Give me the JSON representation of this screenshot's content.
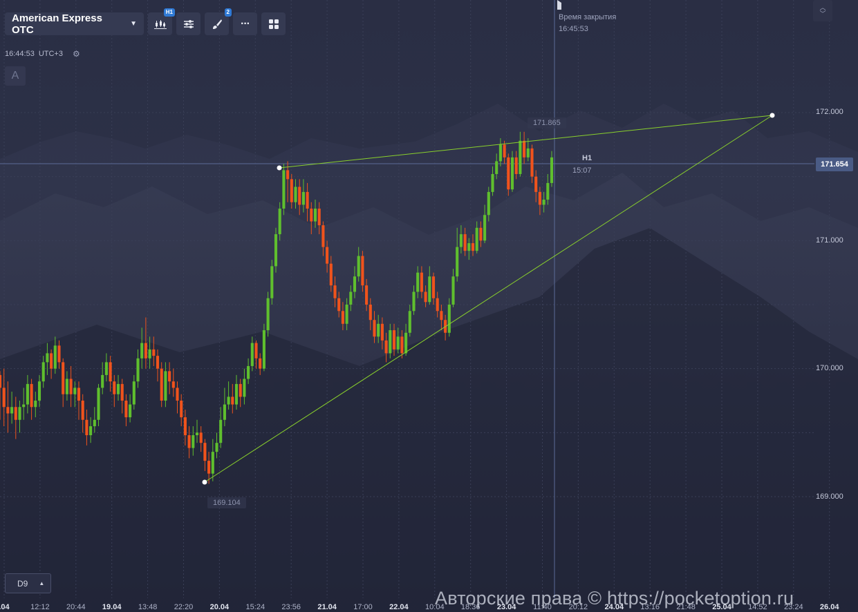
{
  "toolbar": {
    "asset": "American Express OTC",
    "timeframe_badge": "H1",
    "drawings_badge": "2"
  },
  "clock": {
    "time": "16:44:53",
    "zone": "UTC+3"
  },
  "letter_button": "A",
  "close_info": {
    "label": "Время закрытия",
    "time": "16:45:53"
  },
  "current_price": "171.654",
  "candle_timer": {
    "period": "H1",
    "remaining": "15:07"
  },
  "price_axis": [
    "172.000",
    "171.000",
    "170.000",
    "169.000"
  ],
  "time_axis": [
    {
      "label": ".04",
      "bold": true
    },
    {
      "label": "12:12",
      "bold": false
    },
    {
      "label": "20:44",
      "bold": false
    },
    {
      "label": "19.04",
      "bold": true
    },
    {
      "label": "13:48",
      "bold": false
    },
    {
      "label": "22:20",
      "bold": false
    },
    {
      "label": "20.04",
      "bold": true
    },
    {
      "label": "15:24",
      "bold": false
    },
    {
      "label": "23:56",
      "bold": false
    },
    {
      "label": "21.04",
      "bold": true
    },
    {
      "label": "17:00",
      "bold": false
    },
    {
      "label": "22.04",
      "bold": true
    },
    {
      "label": "10:04",
      "bold": false
    },
    {
      "label": "18:36",
      "bold": false
    },
    {
      "label": "23.04",
      "bold": true
    },
    {
      "label": "11:40",
      "bold": false
    },
    {
      "label": "20:12",
      "bold": false
    },
    {
      "label": "24.04",
      "bold": true
    },
    {
      "label": "13:16",
      "bold": false
    },
    {
      "label": "21:48",
      "bold": false
    },
    {
      "label": "25.04",
      "bold": true
    },
    {
      "label": "14:52",
      "bold": false
    },
    {
      "label": "23:24",
      "bold": false
    },
    {
      "label": "26.04",
      "bold": true
    },
    {
      "label": "16:",
      "bold": false
    }
  ],
  "drawing_labels": {
    "high": "171.865",
    "low": "169.104"
  },
  "period_selector": "D9",
  "watermark": "Авторские права © https://pocketoption.ru",
  "colors": {
    "bull": "#5fbf2e",
    "bear": "#f0531c",
    "trendline": "#8ad12c",
    "background": "#2a2e44"
  },
  "chart_data": {
    "type": "candlestick",
    "ylim": [
      168.6,
      172.4
    ],
    "trendlines": [
      {
        "from": {
          "time": "20.04 ~22:00",
          "price": 169.104
        },
        "to": {
          "time": "25.04 ~23:00",
          "price": 172.0
        }
      },
      {
        "from": {
          "time": "21.04 ~00:00",
          "price": 171.6
        },
        "to": {
          "time": "25.04 ~23:00",
          "price": 172.0
        }
      }
    ],
    "candles": [
      [
        169.95,
        169.85,
        169.98,
        169.6
      ],
      [
        169.85,
        169.7,
        170.0,
        169.55
      ],
      [
        169.7,
        169.65,
        169.9,
        169.5
      ],
      [
        169.65,
        169.7,
        169.82,
        169.57
      ],
      [
        169.7,
        169.6,
        169.78,
        169.45
      ],
      [
        169.6,
        169.7,
        169.75,
        169.5
      ],
      [
        169.7,
        169.72,
        169.85,
        169.6
      ],
      [
        169.72,
        169.88,
        169.95,
        169.65
      ],
      [
        169.88,
        169.7,
        169.92,
        169.6
      ],
      [
        169.7,
        169.75,
        169.82,
        169.62
      ],
      [
        169.75,
        169.9,
        169.95,
        169.7
      ],
      [
        169.9,
        170.05,
        170.1,
        169.85
      ],
      [
        170.05,
        170.12,
        170.2,
        169.95
      ],
      [
        170.12,
        170.0,
        170.15,
        169.92
      ],
      [
        170.0,
        170.18,
        170.25,
        169.96
      ],
      [
        170.18,
        170.05,
        170.22,
        170.0
      ],
      [
        170.05,
        169.8,
        170.08,
        169.7
      ],
      [
        169.8,
        169.92,
        169.98,
        169.75
      ],
      [
        169.92,
        169.8,
        170.02,
        169.7
      ],
      [
        169.8,
        169.85,
        169.9,
        169.7
      ],
      [
        169.85,
        169.75,
        169.9,
        169.6
      ],
      [
        169.75,
        169.6,
        169.8,
        169.5
      ],
      [
        169.6,
        169.48,
        169.68,
        169.4
      ],
      [
        169.48,
        169.55,
        169.62,
        169.42
      ],
      [
        169.55,
        169.6,
        169.7,
        169.5
      ],
      [
        169.6,
        169.85,
        169.88,
        169.55
      ],
      [
        169.85,
        169.95,
        170.05,
        169.8
      ],
      [
        169.95,
        170.05,
        170.12,
        169.9
      ],
      [
        170.05,
        169.9,
        170.1,
        169.82
      ],
      [
        169.9,
        169.8,
        169.95,
        169.7
      ],
      [
        169.8,
        169.88,
        169.95,
        169.75
      ],
      [
        169.88,
        169.75,
        169.92,
        169.65
      ],
      [
        169.75,
        169.62,
        169.8,
        169.55
      ],
      [
        169.62,
        169.72,
        169.8,
        169.58
      ],
      [
        169.72,
        169.9,
        169.95,
        169.68
      ],
      [
        169.9,
        170.08,
        170.15,
        169.85
      ],
      [
        170.08,
        170.2,
        170.32,
        170.0
      ],
      [
        170.2,
        170.08,
        170.4,
        170.0
      ],
      [
        170.08,
        170.15,
        170.25,
        170.0
      ],
      [
        170.15,
        170.1,
        170.25,
        170.02
      ],
      [
        170.1,
        170.0,
        170.15,
        169.9
      ],
      [
        170.0,
        169.75,
        170.05,
        169.7
      ],
      [
        169.75,
        169.98,
        170.05,
        169.7
      ],
      [
        169.98,
        169.9,
        170.05,
        169.8
      ],
      [
        169.9,
        169.85,
        170.0,
        169.78
      ],
      [
        169.85,
        169.75,
        169.9,
        169.65
      ],
      [
        169.75,
        169.62,
        169.8,
        169.55
      ],
      [
        169.62,
        169.48,
        169.68,
        169.4
      ],
      [
        169.48,
        169.38,
        169.55,
        169.3
      ],
      [
        169.38,
        169.48,
        169.55,
        169.32
      ],
      [
        169.48,
        169.5,
        169.6,
        169.42
      ],
      [
        169.5,
        169.42,
        169.55,
        169.35
      ],
      [
        169.42,
        169.28,
        169.45,
        169.2
      ],
      [
        169.28,
        169.18,
        169.35,
        169.1
      ],
      [
        169.18,
        169.35,
        169.45,
        169.12
      ],
      [
        169.35,
        169.42,
        169.5,
        169.3
      ],
      [
        169.42,
        169.6,
        169.7,
        169.38
      ],
      [
        169.6,
        169.72,
        169.85,
        169.55
      ],
      [
        169.72,
        169.78,
        169.9,
        169.68
      ],
      [
        169.78,
        169.72,
        169.88,
        169.65
      ],
      [
        169.72,
        169.88,
        169.95,
        169.68
      ],
      [
        169.88,
        169.78,
        169.92,
        169.7
      ],
      [
        169.78,
        169.92,
        170.0,
        169.72
      ],
      [
        169.92,
        170.02,
        170.08,
        169.88
      ],
      [
        170.02,
        170.2,
        170.25,
        169.98
      ],
      [
        170.2,
        170.08,
        170.22,
        170.0
      ],
      [
        170.08,
        170.0,
        170.12,
        169.95
      ],
      [
        170.0,
        170.3,
        170.35,
        169.98
      ],
      [
        170.3,
        170.55,
        170.6,
        170.25
      ],
      [
        170.55,
        170.8,
        170.85,
        170.5
      ],
      [
        170.8,
        171.05,
        171.1,
        170.75
      ],
      [
        171.05,
        171.25,
        171.3,
        171.0
      ],
      [
        171.25,
        171.55,
        171.6,
        171.2
      ],
      [
        171.55,
        171.48,
        171.62,
        171.3
      ],
      [
        171.48,
        171.3,
        171.52,
        171.25
      ],
      [
        171.3,
        171.42,
        171.48,
        171.25
      ],
      [
        171.42,
        171.28,
        171.48,
        171.2
      ],
      [
        171.28,
        171.38,
        171.48,
        171.22
      ],
      [
        171.38,
        171.25,
        171.45,
        171.15
      ],
      [
        171.25,
        171.15,
        171.3,
        171.05
      ],
      [
        171.15,
        171.25,
        171.32,
        171.1
      ],
      [
        171.25,
        171.12,
        171.3,
        171.05
      ],
      [
        171.12,
        170.95,
        171.15,
        170.88
      ],
      [
        170.95,
        170.82,
        171.0,
        170.75
      ],
      [
        170.82,
        170.65,
        170.88,
        170.6
      ],
      [
        170.65,
        170.55,
        170.72,
        170.48
      ],
      [
        170.55,
        170.45,
        170.6,
        170.4
      ],
      [
        170.45,
        170.35,
        170.52,
        170.3
      ],
      [
        170.35,
        170.5,
        170.55,
        170.3
      ],
      [
        170.5,
        170.6,
        170.65,
        170.45
      ],
      [
        170.6,
        170.72,
        170.8,
        170.55
      ],
      [
        170.72,
        170.88,
        170.95,
        170.68
      ],
      [
        170.88,
        170.65,
        170.92,
        170.6
      ],
      [
        170.65,
        170.5,
        170.7,
        170.45
      ],
      [
        170.5,
        170.38,
        170.55,
        170.3
      ],
      [
        170.38,
        170.25,
        170.45,
        170.2
      ],
      [
        170.25,
        170.35,
        170.42,
        170.2
      ],
      [
        170.35,
        170.22,
        170.4,
        170.15
      ],
      [
        170.22,
        170.12,
        170.28,
        170.05
      ],
      [
        170.12,
        170.3,
        170.35,
        170.08
      ],
      [
        170.3,
        170.15,
        170.35,
        170.1
      ],
      [
        170.15,
        170.25,
        170.32,
        170.12
      ],
      [
        170.25,
        170.12,
        170.3,
        170.08
      ],
      [
        170.12,
        170.28,
        170.35,
        170.1
      ],
      [
        170.28,
        170.45,
        170.5,
        170.25
      ],
      [
        170.45,
        170.6,
        170.65,
        170.42
      ],
      [
        170.6,
        170.75,
        170.8,
        170.55
      ],
      [
        170.75,
        170.6,
        170.8,
        170.55
      ],
      [
        170.6,
        170.52,
        170.65,
        170.48
      ],
      [
        170.52,
        170.72,
        170.8,
        170.5
      ],
      [
        170.72,
        170.55,
        170.75,
        170.5
      ],
      [
        170.55,
        170.45,
        170.6,
        170.4
      ],
      [
        170.45,
        170.38,
        170.5,
        170.3
      ],
      [
        170.38,
        170.28,
        170.42,
        170.22
      ],
      [
        170.28,
        170.5,
        170.55,
        170.25
      ],
      [
        170.5,
        170.72,
        170.78,
        170.48
      ],
      [
        170.72,
        170.95,
        171.1,
        170.68
      ],
      [
        170.95,
        171.05,
        171.12,
        170.9
      ],
      [
        171.05,
        170.92,
        171.1,
        170.88
      ],
      [
        170.92,
        170.98,
        171.02,
        170.85
      ],
      [
        170.98,
        170.92,
        171.05,
        170.88
      ],
      [
        170.92,
        171.1,
        171.15,
        170.9
      ],
      [
        171.1,
        171.0,
        171.15,
        170.95
      ],
      [
        171.0,
        171.2,
        171.28,
        170.98
      ],
      [
        171.2,
        171.38,
        171.42,
        171.15
      ],
      [
        171.38,
        171.52,
        171.58,
        171.35
      ],
      [
        171.52,
        171.62,
        171.68,
        171.48
      ],
      [
        171.62,
        171.75,
        171.8,
        171.58
      ],
      [
        171.75,
        171.65,
        171.78,
        171.6
      ],
      [
        171.65,
        171.4,
        171.68,
        171.35
      ],
      [
        171.4,
        171.65,
        171.7,
        171.38
      ],
      [
        171.65,
        171.52,
        171.7,
        171.48
      ],
      [
        171.52,
        171.78,
        171.85,
        171.5
      ],
      [
        171.78,
        171.65,
        171.85,
        171.6
      ],
      [
        171.65,
        171.72,
        171.8,
        171.62
      ],
      [
        171.72,
        171.5,
        171.75,
        171.45
      ],
      [
        171.5,
        171.38,
        171.55,
        171.3
      ],
      [
        171.38,
        171.28,
        171.42,
        171.2
      ],
      [
        171.28,
        171.32,
        171.38,
        171.22
      ],
      [
        171.32,
        171.45,
        171.52,
        171.28
      ],
      [
        171.45,
        171.65,
        171.7,
        171.42
      ]
    ]
  }
}
